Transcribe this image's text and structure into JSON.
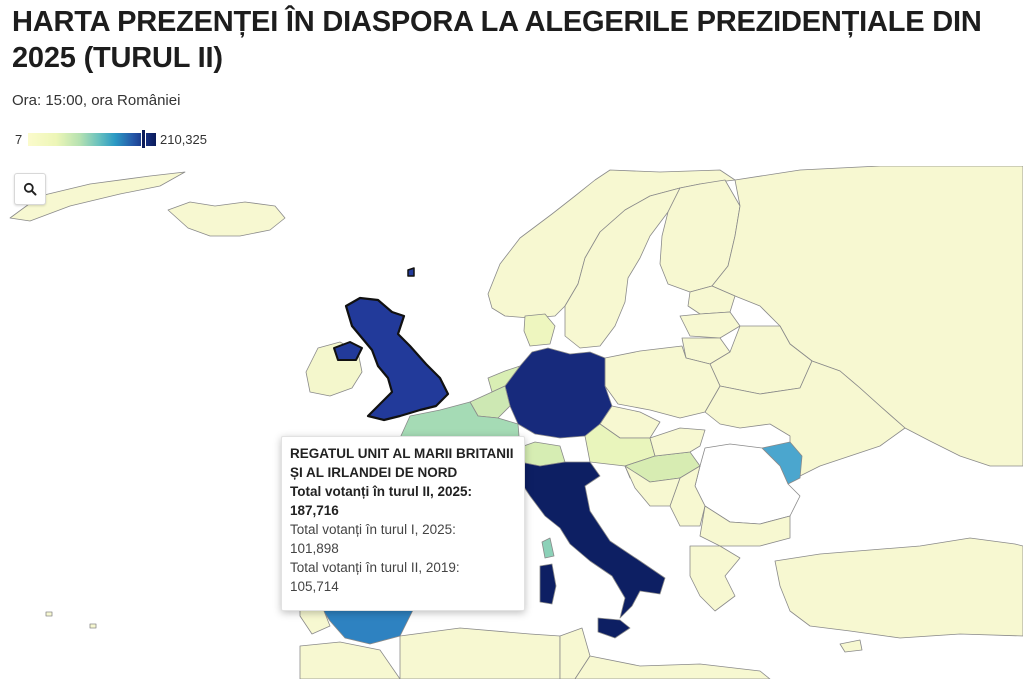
{
  "title": "HARTA PREZENȚEI ÎN DIASPORA LA ALEGERILE PREZIDENȚIALE DIN 2025 (TURUL II)",
  "subtitle": "Ora: 15:00, ora României",
  "legend": {
    "min": "7",
    "max": "210,325",
    "scale": "sequential yellow-green-blue",
    "colors": [
      "#fbfbcc",
      "#b7e2b1",
      "#2b9ac4",
      "#162f82",
      "#0b1b5a"
    ]
  },
  "controls": {
    "zoom_icon": "search-icon"
  },
  "map": {
    "water_color": "#ffffff",
    "no_data_color": "#ffffff",
    "highlight": "REGATUL UNIT AL MARII BRITANII ȘI AL IRLANDEI DE NORD"
  },
  "tooltip": {
    "country": "REGATUL UNIT AL MARII BRITANII ȘI AL IRLANDEI DE NORD",
    "round2_2025_label": "Total votanți în turul II, 2025:",
    "round2_2025_value": "187,716",
    "round1_2025_label": "Total votanți în turul I, 2025:",
    "round1_2025_value": "101,898",
    "round2_2019_label": "Total votanți în turul II, 2019:",
    "round2_2019_value": "105,714"
  }
}
